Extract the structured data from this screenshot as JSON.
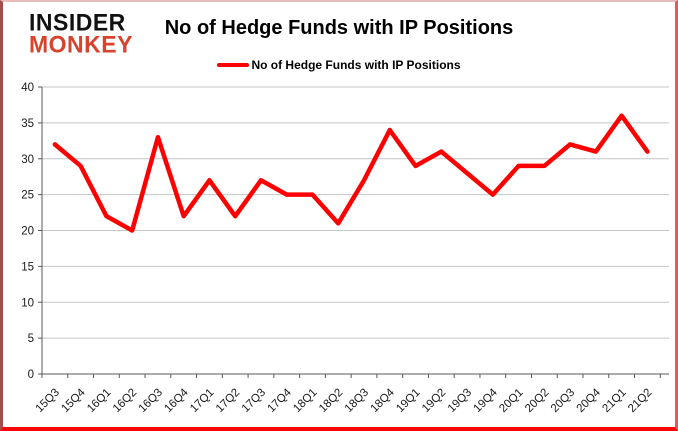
{
  "logo": {
    "line1": "INSIDER",
    "line2": "MONKEY"
  },
  "header": {
    "title": "No of Hedge Funds with IP Positions"
  },
  "legend": {
    "label": "No of Hedge Funds with IP Positions"
  },
  "colors": {
    "series_line": "#ff0000",
    "logo_red": "#d7432c",
    "gridline": "#c6c6c6",
    "axis": "#595959",
    "tick_label": "#1a1a1a"
  },
  "chart_data": {
    "type": "line",
    "title": "No of Hedge Funds with IP Positions",
    "categories": [
      "15Q3",
      "15Q4",
      "16Q1",
      "16Q2",
      "16Q3",
      "16Q4",
      "17Q1",
      "17Q2",
      "17Q3",
      "17Q4",
      "18Q1",
      "18Q2",
      "18Q3",
      "18Q4",
      "19Q1",
      "19Q2",
      "19Q3",
      "19Q4",
      "20Q1",
      "20Q2",
      "20Q3",
      "20Q4",
      "21Q1",
      "21Q2"
    ],
    "series": [
      {
        "name": "No of Hedge Funds with IP Positions",
        "color": "#ff0000",
        "values": [
          32,
          29,
          22,
          20,
          33,
          22,
          27,
          22,
          27,
          25,
          25,
          21,
          27,
          34,
          29,
          31,
          28,
          25,
          29,
          29,
          32,
          31,
          36,
          31
        ]
      }
    ],
    "xlabel": "",
    "ylabel": "",
    "ylim": [
      0,
      40
    ],
    "yticks": [
      0,
      5,
      10,
      15,
      20,
      25,
      30,
      35,
      40
    ],
    "grid": true,
    "legend_position": "top",
    "x_tick_label_rotation_deg": -45
  }
}
